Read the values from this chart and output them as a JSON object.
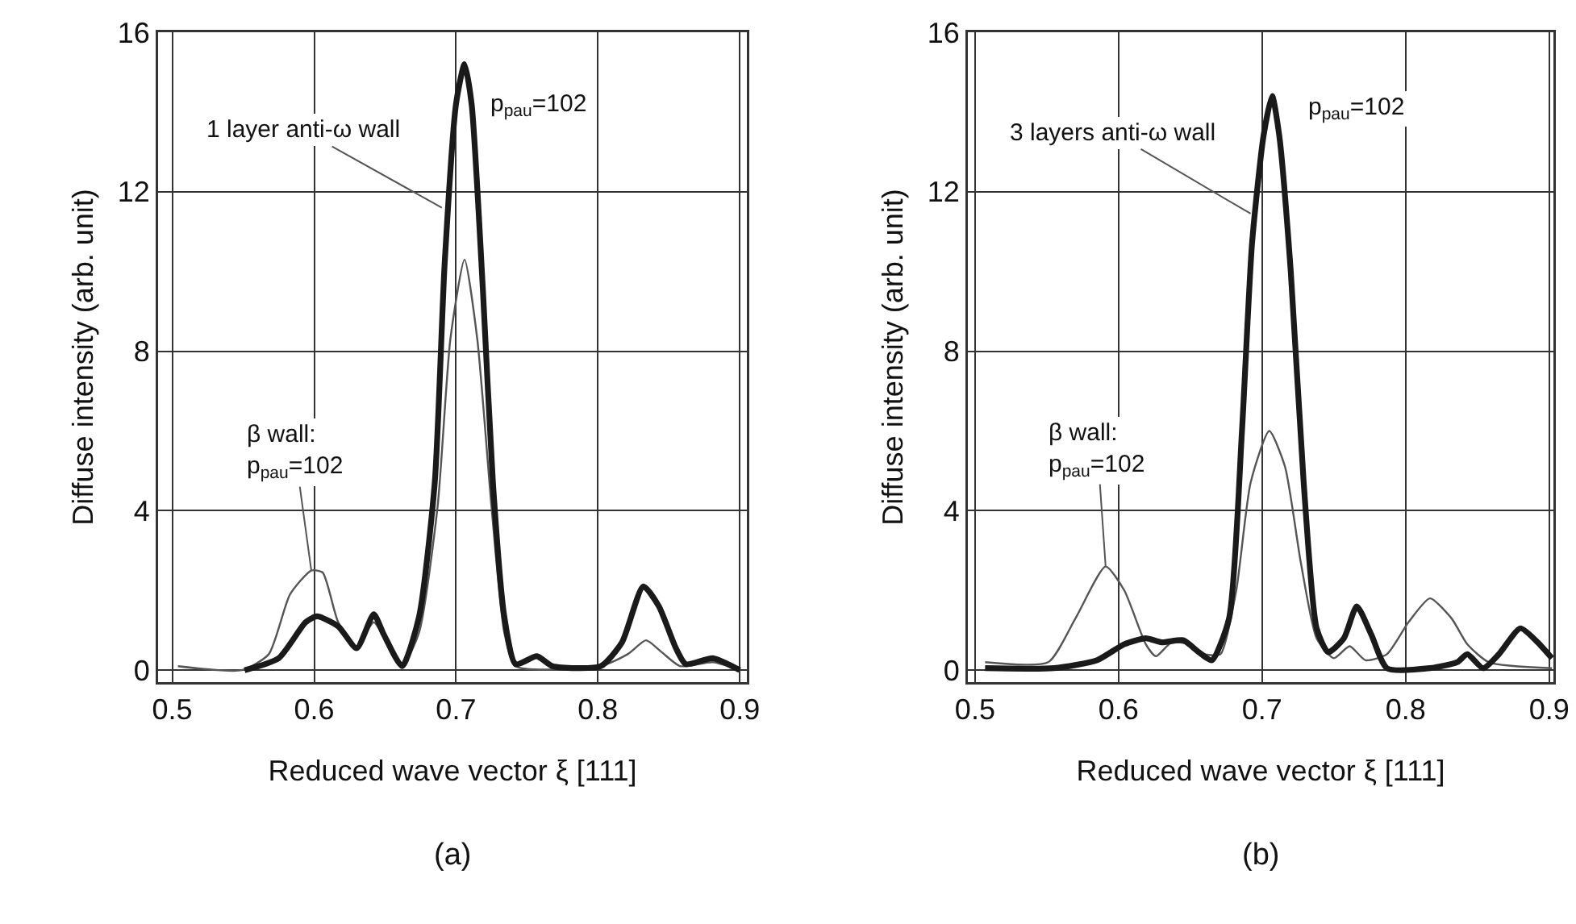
{
  "chart_data": [
    {
      "type": "line",
      "xlabel": "Reduced wave vector ξ [111]",
      "ylabel": "Diffuse intensity (arb. unit)",
      "xlim": [
        0.49,
        0.905
      ],
      "ylim": [
        -0.3,
        16
      ],
      "xticks": [
        0.5,
        0.6,
        0.7,
        0.8,
        0.9
      ],
      "yticks": [
        0,
        4,
        8,
        12,
        16
      ],
      "grid": true,
      "marker": "none",
      "line_style": "solid",
      "series": [
        {
          "color": "#1a1a1a",
          "x": [
            0.551,
            0.575,
            0.594,
            0.602,
            0.617,
            0.63,
            0.642,
            0.649,
            0.662,
            0.674,
            0.685,
            0.692,
            0.7,
            0.706,
            0.711,
            0.719,
            0.726,
            0.734,
            0.742,
            0.757,
            0.768,
            0.802,
            0.817,
            0.832,
            0.843,
            0.855,
            0.862,
            0.881,
            0.9
          ],
          "values": [
            0,
            0.3,
            1.2,
            1.35,
            1.1,
            0.55,
            1.4,
            0.9,
            0.1,
            1.35,
            4.7,
            10.2,
            14.2,
            15.2,
            14.2,
            9.5,
            4.7,
            1.35,
            0.15,
            0.35,
            0.1,
            0.1,
            0.7,
            2.1,
            1.6,
            0.55,
            0.15,
            0.3,
            0
          ]
        },
        {
          "color": "#555555",
          "x": [
            0.504,
            0.549,
            0.568,
            0.583,
            0.598,
            0.606,
            0.617,
            0.63,
            0.642,
            0.651,
            0.662,
            0.674,
            0.687,
            0.696,
            0.706,
            0.715,
            0.725,
            0.734,
            0.742,
            0.802,
            0.821,
            0.834,
            0.845,
            0.858,
            0.881,
            0.9
          ],
          "values": [
            0.1,
            0,
            0.4,
            1.9,
            2.5,
            2.45,
            1.2,
            0.6,
            1.2,
            0.7,
            0.1,
            0.95,
            4.1,
            8.3,
            10.3,
            8.3,
            4.1,
            0.95,
            0.1,
            0.1,
            0.4,
            0.75,
            0.45,
            0.1,
            0.2,
            0
          ]
        }
      ],
      "annotations": [
        {
          "text": "1 layer anti-ω wall",
          "x": 0.69,
          "y": 11.6
        },
        {
          "text": "p$_{pau}$=102",
          "x": 0.706,
          "y": 15.2
        },
        {
          "text": "β wall:\np$_{pau}$=102",
          "x": 0.598,
          "y": 2.5
        },
        "(a)"
      ]
    },
    {
      "type": "line",
      "xlabel": "Reduced wave vector ξ [111]",
      "ylabel": "Diffuse intensity (arb. unit)",
      "xlim": [
        0.495,
        0.903
      ],
      "ylim": [
        -0.3,
        16
      ],
      "xticks": [
        0.5,
        0.6,
        0.7,
        0.8,
        0.9
      ],
      "yticks": [
        0,
        4,
        8,
        12,
        16
      ],
      "grid": true,
      "marker": "none",
      "line_style": "solid",
      "series": [
        {
          "color": "#1a1a1a",
          "x": [
            0.507,
            0.555,
            0.585,
            0.604,
            0.619,
            0.63,
            0.645,
            0.656,
            0.665,
            0.677,
            0.686,
            0.693,
            0.701,
            0.707,
            0.712,
            0.72,
            0.729,
            0.738,
            0.746,
            0.757,
            0.766,
            0.776,
            0.787,
            0.817,
            0.836,
            0.843,
            0.854,
            0.865,
            0.88,
            0.892,
            0.902
          ],
          "values": [
            0.05,
            0.05,
            0.25,
            0.65,
            0.8,
            0.7,
            0.75,
            0.45,
            0.25,
            1.3,
            6.0,
            10.7,
            13.4,
            14.4,
            13.4,
            10.0,
            4.7,
            1.05,
            0.45,
            0.8,
            1.6,
            0.9,
            0.05,
            0.05,
            0.2,
            0.4,
            0.05,
            0.4,
            1.05,
            0.7,
            0.3
          ]
        },
        {
          "color": "#555555",
          "x": [
            0.507,
            0.551,
            0.57,
            0.591,
            0.604,
            0.619,
            0.626,
            0.637,
            0.649,
            0.66,
            0.671,
            0.682,
            0.692,
            0.705,
            0.716,
            0.727,
            0.738,
            0.75,
            0.761,
            0.772,
            0.787,
            0.802,
            0.817,
            0.832,
            0.843,
            0.858,
            0.902
          ],
          "values": [
            0.2,
            0.2,
            1.3,
            2.6,
            2.0,
            0.65,
            0.35,
            0.7,
            0.65,
            0.4,
            0.4,
            2.0,
            4.7,
            6.0,
            5.1,
            2.7,
            0.8,
            0.3,
            0.6,
            0.25,
            0.4,
            1.2,
            1.8,
            1.3,
            0.65,
            0.2,
            0.05
          ]
        }
      ],
      "annotations": [
        {
          "text": "3 layers anti-ω wall",
          "x": 0.692,
          "y": 11.45
        },
        {
          "text": "p$_{pau}$=102",
          "x": 0.707,
          "y": 14.4
        },
        {
          "text": "β wall:\np$_{pau}$=102",
          "x": 0.591,
          "y": 2.6
        },
        "(b)"
      ]
    }
  ]
}
